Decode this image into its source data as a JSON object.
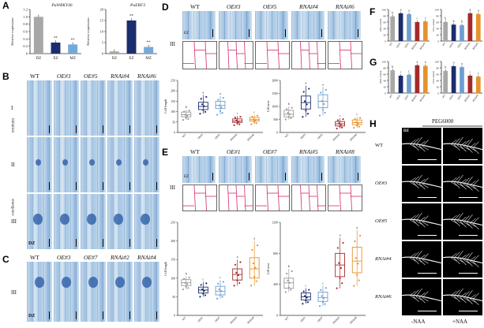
{
  "panels": {
    "A": {
      "letter": "A",
      "charts": [
        {
          "gene": "PuWRKY46",
          "ylabel": "Relative expression",
          "categories": [
            "DZ",
            "EZ",
            "MZ"
          ],
          "values": [
            1.0,
            0.3,
            0.25
          ],
          "ylim": [
            0,
            1.2
          ],
          "ticks": [
            "0",
            "0.2",
            "0.4",
            "0.6",
            "0.8",
            "1.0",
            "1.2"
          ],
          "sig": [
            "",
            "**",
            "**"
          ],
          "colors": [
            "#a7a7a7",
            "#1c2d6e",
            "#74a9d8"
          ]
        },
        {
          "gene": "PuERF3",
          "ylabel": "Relative expression",
          "categories": [
            "DZ",
            "EZ",
            "MZ"
          ],
          "values": [
            1.0,
            15.0,
            3.0
          ],
          "ylim": [
            0,
            20
          ],
          "ticks": [
            "0",
            "5",
            "10",
            "15",
            "20"
          ],
          "sig": [
            "",
            "**",
            "**"
          ],
          "colors": [
            "#a7a7a7",
            "#1c2d6e",
            "#74a9d8"
          ]
        }
      ]
    },
    "B": {
      "letter": "B",
      "columns": [
        "WT",
        "OE#3",
        "OE#5",
        "RNAi#4",
        "RNAi#6"
      ],
      "rows": [
        "I",
        "II",
        "III"
      ],
      "side": {
        "initiation": "initiation",
        "emergence": "emergence",
        "dz": "DZ"
      }
    },
    "C": {
      "letter": "C",
      "columns": [
        "WT",
        "OE#3",
        "OE#7",
        "RNAi#2",
        "RNAi#4"
      ],
      "row": "III",
      "dz": "DZ"
    },
    "D": {
      "letter": "D",
      "columns": [
        "WT",
        "OE#3",
        "OE#5",
        "RNAi#4",
        "RNAi#6"
      ],
      "row": "III",
      "ez": "EZ"
    },
    "E": {
      "letter": "E",
      "columns": [
        "WT",
        "OE#1",
        "OE#7",
        "RNAi#5",
        "RNAi#8"
      ],
      "row": "III",
      "ez": "EZ"
    },
    "F": {
      "letter": "F",
      "left_ylabel": "ABA content",
      "right_ylabel": "IAA content"
    },
    "G": {
      "letter": "G",
      "left_ylabel": "ABA content",
      "right_ylabel": "IAA content"
    },
    "H": {
      "letter": "H",
      "treatment": "PEG6000",
      "rows": [
        "WT",
        "OE#3",
        "OE#5",
        "RNAi#4",
        "RNAi#6"
      ],
      "columns": [
        "-NAA",
        "+NAA"
      ],
      "dz": "DZ"
    }
  },
  "chart_data": [
    {
      "type": "bar",
      "title": "PuWRKY46",
      "xlabel": "",
      "ylabel": "Relative expression",
      "categories": [
        "DZ",
        "EZ",
        "MZ"
      ],
      "values": [
        1.0,
        0.3,
        0.25
      ],
      "ylim": [
        0,
        1.2
      ]
    },
    {
      "type": "bar",
      "title": "PuERF3",
      "xlabel": "",
      "ylabel": "Relative expression",
      "categories": [
        "DZ",
        "EZ",
        "MZ"
      ],
      "values": [
        1.0,
        15.0,
        3.0
      ],
      "ylim": [
        0,
        20
      ]
    },
    {
      "type": "box",
      "panel": "D",
      "ylabel": "Cell length",
      "categories": [
        "WT",
        "OE#3",
        "OE#5",
        "RNAi#4",
        "RNAi#6"
      ],
      "ylim": [
        0,
        250
      ],
      "ticks": [
        "0",
        "50",
        "100",
        "150",
        "200",
        "250"
      ],
      "sig": [
        "b",
        "a",
        "a",
        "c",
        "c"
      ],
      "boxes": [
        {
          "q1": 75,
          "median": 85,
          "q3": 98,
          "min": 60,
          "max": 110
        },
        {
          "q1": 110,
          "median": 125,
          "q3": 145,
          "min": 90,
          "max": 180
        },
        {
          "q1": 115,
          "median": 130,
          "q3": 150,
          "min": 85,
          "max": 175
        },
        {
          "q1": 48,
          "median": 55,
          "q3": 65,
          "min": 35,
          "max": 80
        },
        {
          "q1": 55,
          "median": 62,
          "q3": 72,
          "min": 40,
          "max": 85
        }
      ],
      "colors": [
        "#9b9b9b",
        "#1c2d6e",
        "#6f9fd0",
        "#a52a2a",
        "#e6922c"
      ]
    },
    {
      "type": "box",
      "panel": "D",
      "ylabel": "Cell area",
      "categories": [
        "WT",
        "OE#3",
        "OE#5",
        "RNAi#4",
        "RNAi#6"
      ],
      "ylim": [
        0,
        2000
      ],
      "ticks": [
        "0",
        "500",
        "1000",
        "1500",
        "2000"
      ],
      "sig": [
        "b",
        "a",
        "a",
        "c",
        "c"
      ],
      "boxes": [
        {
          "q1": 600,
          "median": 700,
          "q3": 850,
          "min": 500,
          "max": 1000
        },
        {
          "q1": 900,
          "median": 1150,
          "q3": 1400,
          "min": 600,
          "max": 1800
        },
        {
          "q1": 950,
          "median": 1200,
          "q3": 1450,
          "min": 650,
          "max": 1750
        },
        {
          "q1": 250,
          "median": 330,
          "q3": 420,
          "min": 150,
          "max": 550
        },
        {
          "q1": 300,
          "median": 380,
          "q3": 480,
          "min": 180,
          "max": 600
        }
      ],
      "colors": [
        "#9b9b9b",
        "#1c2d6e",
        "#6f9fd0",
        "#a52a2a",
        "#e6922c"
      ]
    },
    {
      "type": "box",
      "panel": "E",
      "ylabel": "Cell length",
      "categories": [
        "WT",
        "OE#1",
        "OE#7",
        "RNAi#5",
        "RNAi#8"
      ],
      "ylim": [
        0,
        250
      ],
      "ticks": [
        "0",
        "50",
        "100",
        "150",
        "200",
        "250"
      ],
      "sig": [
        "b",
        "c",
        "c",
        "a",
        "a"
      ],
      "boxes": [
        {
          "q1": 80,
          "median": 88,
          "q3": 96,
          "min": 70,
          "max": 105
        },
        {
          "q1": 60,
          "median": 68,
          "q3": 76,
          "min": 50,
          "max": 90
        },
        {
          "q1": 55,
          "median": 65,
          "q3": 78,
          "min": 45,
          "max": 95
        },
        {
          "q1": 95,
          "median": 110,
          "q3": 125,
          "min": 80,
          "max": 150
        },
        {
          "q1": 100,
          "median": 125,
          "q3": 155,
          "min": 80,
          "max": 200
        }
      ],
      "colors": [
        "#9b9b9b",
        "#1c2d6e",
        "#6f9fd0",
        "#a52a2a",
        "#e6922c"
      ]
    },
    {
      "type": "box",
      "panel": "E",
      "ylabel": "Cell area",
      "categories": [
        "WT",
        "OE#1",
        "OE#7",
        "RNAi#5",
        "RNAi#8"
      ],
      "ylim": [
        0,
        1200
      ],
      "ticks": [
        "0",
        "400",
        "800",
        "1200"
      ],
      "sig": [
        "b",
        "c",
        "c",
        "a",
        "a"
      ],
      "boxes": [
        {
          "q1": 350,
          "median": 420,
          "q3": 480,
          "min": 300,
          "max": 600
        },
        {
          "q1": 200,
          "median": 240,
          "q3": 290,
          "min": 150,
          "max": 350
        },
        {
          "q1": 180,
          "median": 230,
          "q3": 300,
          "min": 120,
          "max": 380
        },
        {
          "q1": 500,
          "median": 650,
          "q3": 800,
          "min": 350,
          "max": 1000
        },
        {
          "q1": 550,
          "median": 700,
          "q3": 880,
          "min": 380,
          "max": 1100
        }
      ],
      "colors": [
        "#9b9b9b",
        "#1c2d6e",
        "#6f9fd0",
        "#a52a2a",
        "#e6922c"
      ]
    },
    {
      "type": "bar",
      "panel": "F",
      "ylabel": "ABA content",
      "categories": [
        "WT",
        "OE#3",
        "OE#5",
        "RNAi#4",
        "RNAi#6"
      ],
      "values": [
        78,
        88,
        85,
        60,
        62
      ],
      "ylim": [
        0,
        100
      ],
      "ticks": [
        "0",
        "20",
        "40",
        "60",
        "80",
        "100"
      ],
      "sig": [
        "b",
        "a",
        "a",
        "c",
        "c"
      ],
      "colors": [
        "#a7a7a7",
        "#1c2d6e",
        "#6f9fd0",
        "#a52a2a",
        "#e6922c"
      ]
    },
    {
      "type": "bar",
      "panel": "F",
      "ylabel": "IAA content",
      "categories": [
        "WT",
        "OE#3",
        "OE#5",
        "RNAi#4",
        "RNAi#6"
      ],
      "values": [
        60,
        52,
        50,
        88,
        85
      ],
      "ylim": [
        0,
        100
      ],
      "ticks": [
        "0",
        "20",
        "40",
        "60",
        "80",
        "100"
      ],
      "sig": [
        "b",
        "b",
        "b",
        "a",
        "a"
      ],
      "colors": [
        "#a7a7a7",
        "#1c2d6e",
        "#6f9fd0",
        "#a52a2a",
        "#e6922c"
      ]
    },
    {
      "type": "bar",
      "panel": "G",
      "ylabel": "ABA content",
      "categories": [
        "WT",
        "OE#1",
        "OE#7",
        "RNAi#5",
        "RNAi#8"
      ],
      "values": [
        72,
        55,
        58,
        88,
        86
      ],
      "ylim": [
        0,
        100
      ],
      "ticks": [
        "0",
        "20",
        "40",
        "60",
        "80",
        "100"
      ],
      "sig": [
        "b",
        "c",
        "c",
        "a",
        "a"
      ],
      "colors": [
        "#a7a7a7",
        "#1c2d6e",
        "#6f9fd0",
        "#a52a2a",
        "#e6922c"
      ]
    },
    {
      "type": "bar",
      "panel": "G",
      "ylabel": "IAA content",
      "categories": [
        "WT",
        "OE#1",
        "OE#7",
        "RNAi#5",
        "RNAi#8"
      ],
      "values": [
        70,
        85,
        82,
        55,
        52
      ],
      "ylim": [
        0,
        100
      ],
      "ticks": [
        "0",
        "20",
        "40",
        "60",
        "80",
        "100"
      ],
      "sig": [
        "b",
        "a",
        "a",
        "c",
        "c"
      ],
      "colors": [
        "#a7a7a7",
        "#1c2d6e",
        "#6f9fd0",
        "#a52a2a",
        "#e6922c"
      ]
    }
  ]
}
